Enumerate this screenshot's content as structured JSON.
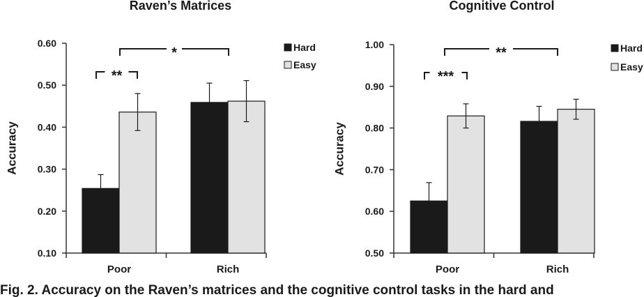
{
  "caption": "Fig. 2. Accuracy on the Raven’s matrices and the cognitive control tasks in the hard and",
  "chart_data": [
    {
      "type": "bar",
      "title": "Raven’s Matrices",
      "ylabel": "Accuracy",
      "xlabel": "",
      "categories": [
        "Poor",
        "Rich"
      ],
      "ylim": [
        0.1,
        0.6
      ],
      "yticks": [
        "0.10",
        "0.20",
        "0.30",
        "0.40",
        "0.50",
        "0.60"
      ],
      "series": [
        {
          "name": "Hard",
          "color": "#1a1a1a",
          "values": [
            0.254,
            0.459
          ],
          "errors": [
            0.033,
            0.046
          ]
        },
        {
          "name": "Easy",
          "color": "#e2e2e2",
          "values": [
            0.436,
            0.462
          ],
          "errors": [
            0.044,
            0.049
          ]
        }
      ],
      "legend_position": "top-right",
      "significance": [
        {
          "label": "**",
          "between": "Poor: Hard vs Easy"
        },
        {
          "label": "*",
          "between": "Poor vs Rich"
        }
      ]
    },
    {
      "type": "bar",
      "title": "Cognitive Control",
      "ylabel": "Accuracy",
      "xlabel": "",
      "categories": [
        "Poor",
        "Rich"
      ],
      "ylim": [
        0.5,
        1.0
      ],
      "yticks": [
        "0.50",
        "0.60",
        "0.70",
        "0.80",
        "0.90",
        "1.00"
      ],
      "series": [
        {
          "name": "Hard",
          "color": "#1a1a1a",
          "values": [
            0.625,
            0.816
          ],
          "errors": [
            0.044,
            0.036
          ]
        },
        {
          "name": "Easy",
          "color": "#e2e2e2",
          "values": [
            0.829,
            0.845
          ],
          "errors": [
            0.029,
            0.024
          ]
        }
      ],
      "legend_position": "top-right",
      "significance": [
        {
          "label": "***",
          "between": "Poor: Hard vs Easy"
        },
        {
          "label": "**",
          "between": "Poor vs Rich"
        }
      ]
    }
  ]
}
